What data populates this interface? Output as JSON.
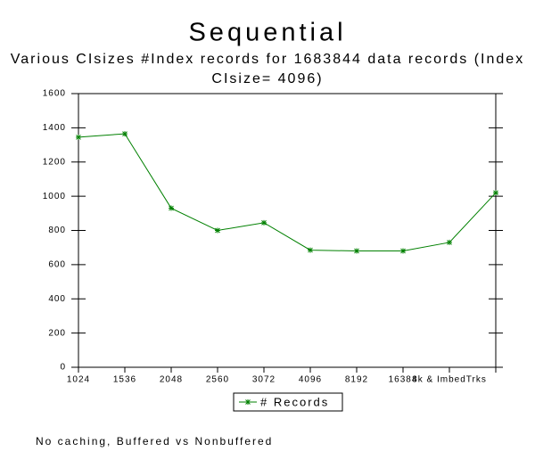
{
  "chart_data": {
    "type": "line",
    "title": "Sequential",
    "subtitle": "Various CIsizes  #Index records for 1683844 data records (Index CIsize= 4096)",
    "categories": [
      "1024",
      "1536",
      "2048",
      "2560",
      "3072",
      "4096",
      "8192",
      "16384",
      "8k & ImbedTrks",
      null
    ],
    "series": [
      {
        "name": "# Records",
        "color": "#008000",
        "values": [
          1345,
          1365,
          930,
          800,
          845,
          685,
          680,
          680,
          730,
          1020
        ]
      }
    ],
    "ylim": [
      0,
      1600
    ],
    "yticks": [
      0,
      200,
      400,
      600,
      800,
      1000,
      1200,
      1400,
      1600
    ],
    "title_color": "#0000ff",
    "footnote": "No caching, Buffered vs Nonbuffered"
  }
}
